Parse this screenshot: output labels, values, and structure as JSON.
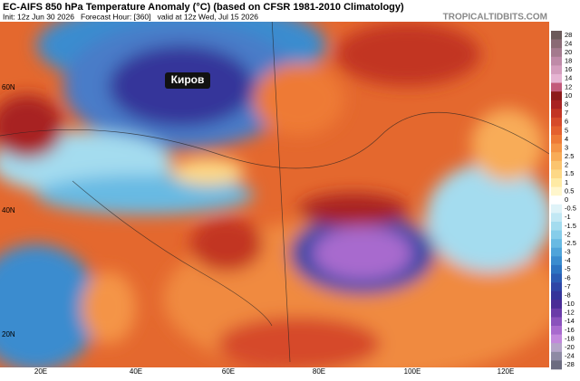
{
  "header": {
    "title": "EC-AIFS 850 hPa Temperature Anomaly (°C) (based on CFSR 1981-2010 Climatology)",
    "subtitle": "Init: 12z Jun 30 2026   Forecast Hour: [360]   valid at 12z Wed, Jul 15 2026",
    "brand": "TROPICALTIDBITS.COM"
  },
  "map": {
    "city": "Киров",
    "lat_labels": [
      "60N",
      "40N",
      "20N"
    ],
    "lon_labels": [
      "20E",
      "40E",
      "60E",
      "80E",
      "100E",
      "120E"
    ]
  },
  "colorbar": {
    "ticks": [
      28,
      24,
      20,
      18,
      16,
      14,
      12,
      10,
      8,
      7,
      6,
      5,
      4,
      3,
      2.5,
      2,
      1.5,
      1,
      0.5,
      0,
      -0.5,
      -1,
      -1.5,
      -2,
      -2.5,
      -3,
      -4,
      -5,
      -6,
      -7,
      -8,
      -10,
      -12,
      -14,
      -16,
      -18,
      -20,
      -24,
      -28
    ],
    "colors": [
      "#6b5a5a",
      "#8a6a75",
      "#a47a8e",
      "#bf8aa8",
      "#d49dbd",
      "#e6b4d2",
      "#c25a7a",
      "#8c1a1a",
      "#a82222",
      "#c23424",
      "#d64a2a",
      "#e4602e",
      "#ee7a36",
      "#f49446",
      "#f8ac58",
      "#fbc46e",
      "#fdd886",
      "#feeaa4",
      "#fff6cc",
      "#ffffff",
      "#dff3f8",
      "#c2e8f4",
      "#a4dcef",
      "#86cdea",
      "#68bae3",
      "#4fa4da",
      "#3a8ccf",
      "#2c74c2",
      "#2a5cb4",
      "#2e46a6",
      "#34349a",
      "#4a2c96",
      "#6a3ca8",
      "#8a52bc",
      "#a86ace",
      "#c288dc",
      "#b4a4c8",
      "#8e8aa4",
      "#6c6c80"
    ]
  }
}
